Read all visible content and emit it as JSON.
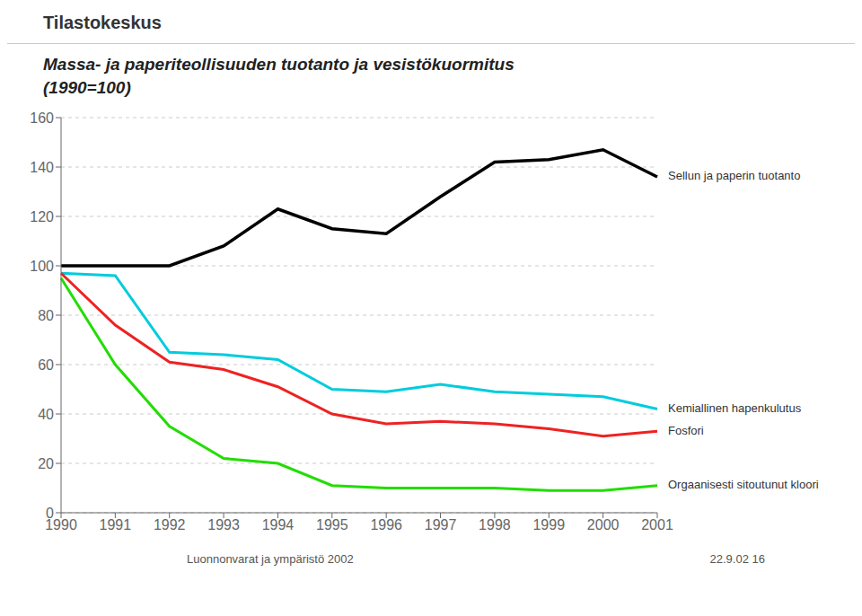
{
  "chart_data": {
    "type": "line",
    "title": "Massa- ja paperiteollisuuden tuotanto ja vesistökuormitus",
    "subtitle": "(1990=100)",
    "x": [
      1990,
      1991,
      1992,
      1993,
      1994,
      1995,
      1996,
      1997,
      1998,
      1999,
      2000,
      2001
    ],
    "series": [
      {
        "name": "Sellun ja paperin tuotanto",
        "color": "#000000",
        "values": [
          100,
          100,
          100,
          108,
          123,
          115,
          113,
          128,
          142,
          143,
          147,
          136
        ]
      },
      {
        "name": "Kemiallinen hapenkulutus",
        "color": "#00ccdd",
        "values": [
          97,
          96,
          65,
          64,
          62,
          50,
          49,
          52,
          49,
          48,
          47,
          42
        ]
      },
      {
        "name": "Fosfori",
        "color": "#ee2222",
        "values": [
          97,
          76,
          61,
          58,
          51,
          40,
          36,
          37,
          36,
          34,
          31,
          33
        ]
      },
      {
        "name": "Orgaanisesti sitoutunut kloori",
        "color": "#22dd00",
        "values": [
          95,
          60,
          35,
          22,
          20,
          11,
          10,
          10,
          10,
          9,
          9,
          11
        ]
      }
    ],
    "xlim": [
      1990,
      2001
    ],
    "xticks": [
      1990,
      1991,
      1992,
      1993,
      1994,
      1995,
      1996,
      1997,
      1998,
      1999,
      2000,
      2001
    ],
    "ylim": [
      0,
      160
    ],
    "yticks": [
      0,
      20,
      40,
      60,
      80,
      100,
      120,
      140,
      160
    ],
    "grid": true,
    "annotations": [
      "Tilastokeskus",
      "Luonnonvarat ja ympäristö 2002",
      "22.9.02  16"
    ]
  }
}
